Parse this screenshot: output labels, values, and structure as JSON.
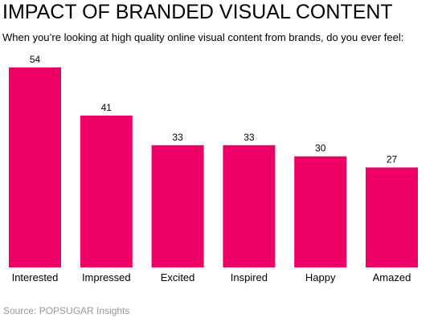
{
  "header": {
    "title": "IMPACT OF BRANDED VISUAL CONTENT",
    "subtitle": "When you’re looking at high quality online visual content from brands, do you ever feel:"
  },
  "footer": {
    "source": "Source: POPSUGAR Insights"
  },
  "colors": {
    "bar": "#EE0066",
    "text": "#000000",
    "source": "#999999"
  },
  "chart_data": {
    "type": "bar",
    "title": "IMPACT OF BRANDED VISUAL CONTENT",
    "subtitle": "When you’re looking at high quality online visual content from brands, do you ever feel:",
    "categories": [
      "Interested",
      "Impressed",
      "Excited",
      "Inspired",
      "Happy",
      "Amazed"
    ],
    "values": [
      54,
      41,
      33,
      33,
      30,
      27
    ],
    "data_labels": [
      "54",
      "41",
      "33",
      "33",
      "30",
      "27"
    ],
    "xlabel": "",
    "ylabel": "",
    "ylim": [
      0,
      54
    ],
    "grid": false,
    "legend": "none"
  }
}
